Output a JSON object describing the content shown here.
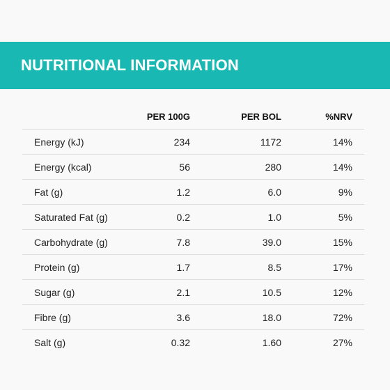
{
  "header": {
    "title": "NUTRITIONAL INFORMATION"
  },
  "table": {
    "columns": [
      "",
      "PER 100G",
      "PER BOL",
      "%NRV"
    ],
    "rows": [
      {
        "label": "Energy (kJ)",
        "per_100g": "234",
        "per_bol": "1172",
        "nrv": "14%"
      },
      {
        "label": "Energy (kcal)",
        "per_100g": "56",
        "per_bol": "280",
        "nrv": "14%"
      },
      {
        "label": "Fat (g)",
        "per_100g": "1.2",
        "per_bol": "6.0",
        "nrv": "9%"
      },
      {
        "label": "Saturated Fat (g)",
        "per_100g": "0.2",
        "per_bol": "1.0",
        "nrv": "5%"
      },
      {
        "label": "Carbohydrate (g)",
        "per_100g": "7.8",
        "per_bol": "39.0",
        "nrv": "15%"
      },
      {
        "label": "Protein (g)",
        "per_100g": "1.7",
        "per_bol": "8.5",
        "nrv": "17%"
      },
      {
        "label": "Sugar (g)",
        "per_100g": "2.1",
        "per_bol": "10.5",
        "nrv": "12%"
      },
      {
        "label": "Fibre (g)",
        "per_100g": "3.6",
        "per_bol": "18.0",
        "nrv": "72%"
      },
      {
        "label": "Salt (g)",
        "per_100g": "0.32",
        "per_bol": "1.60",
        "nrv": "27%"
      }
    ]
  },
  "colors": {
    "banner": "#1ab8b2",
    "background": "#f9f9f9",
    "divider": "#dcdcdc"
  }
}
